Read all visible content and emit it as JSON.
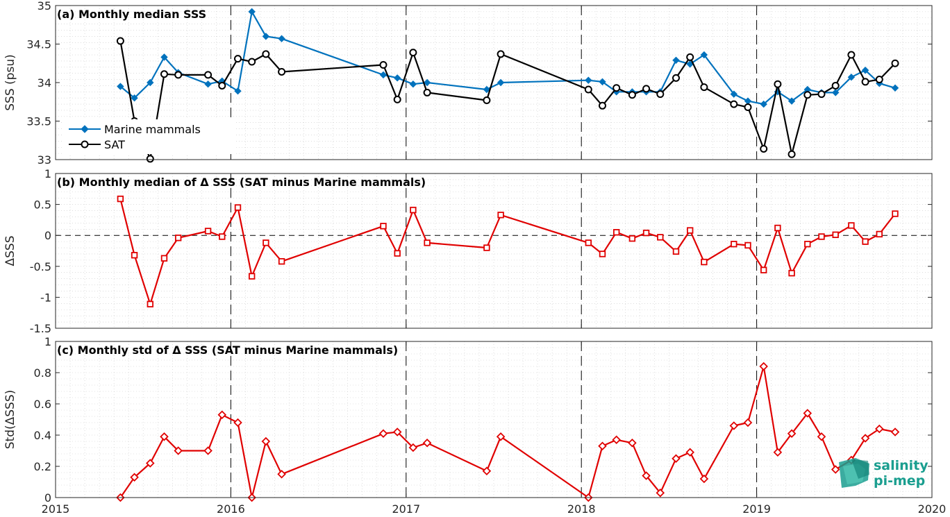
{
  "x_axis": {
    "ticks": [
      "2015",
      "2016",
      "2017",
      "2018",
      "2019",
      "2020"
    ]
  },
  "logo": {
    "line1": "salinity",
    "line2": "pi-mep",
    "color": "#1a9e8f"
  },
  "chart_data": [
    {
      "type": "line",
      "title": "(a) Monthly median SSS",
      "ylabel": "SSS (psu)",
      "xlim": [
        2015,
        2020
      ],
      "ylim": [
        33,
        35
      ],
      "yticks": [
        "33",
        "33.5",
        "34",
        "34.5",
        "35"
      ],
      "grid": true,
      "legend_position": "left",
      "series": [
        {
          "name": "Marine mammals",
          "color": "#0072BD",
          "marker": "diamond-filled",
          "x": [
            2015.37,
            2015.45,
            2015.54,
            2015.62,
            2015.7,
            2015.87,
            2015.95,
            2016.04,
            2016.12,
            2016.2,
            2016.29,
            2016.87,
            2016.95,
            2017.04,
            2017.12,
            2017.46,
            2017.54,
            2018.04,
            2018.12,
            2018.2,
            2018.29,
            2018.37,
            2018.45,
            2018.54,
            2018.62,
            2018.7,
            2018.87,
            2018.95,
            2019.04,
            2019.12,
            2019.2,
            2019.29,
            2019.37,
            2019.45,
            2019.54,
            2019.62,
            2019.7,
            2019.79
          ],
          "y": [
            33.95,
            33.8,
            34.0,
            34.33,
            34.13,
            33.98,
            34.02,
            33.89,
            34.92,
            34.6,
            34.57,
            34.1,
            34.06,
            33.98,
            34.0,
            33.91,
            34.0,
            34.03,
            34.01,
            33.88,
            33.88,
            33.88,
            33.88,
            34.29,
            34.24,
            34.36,
            33.85,
            33.76,
            33.72,
            33.88,
            33.76,
            33.91,
            33.87,
            33.87,
            34.07,
            34.16,
            33.99,
            33.93
          ]
        },
        {
          "name": "SAT",
          "color": "#000000",
          "marker": "circle-open",
          "x": [
            2015.37,
            2015.45,
            2015.54,
            2015.62,
            2015.7,
            2015.87,
            2015.95,
            2016.04,
            2016.12,
            2016.2,
            2016.29,
            2016.87,
            2016.95,
            2017.04,
            2017.12,
            2017.46,
            2017.54,
            2018.04,
            2018.12,
            2018.2,
            2018.29,
            2018.37,
            2018.45,
            2018.54,
            2018.62,
            2018.7,
            2018.87,
            2018.95,
            2019.04,
            2019.12,
            2019.2,
            2019.29,
            2019.37,
            2019.45,
            2019.54,
            2019.62,
            2019.7,
            2019.79
          ],
          "y": [
            34.54,
            33.5,
            33.01,
            34.11,
            34.1,
            34.1,
            33.96,
            34.31,
            34.27,
            34.37,
            34.14,
            34.23,
            33.78,
            34.39,
            33.87,
            33.77,
            34.37,
            33.91,
            33.7,
            33.93,
            33.84,
            33.92,
            33.85,
            34.06,
            34.33,
            33.94,
            33.72,
            33.68,
            33.14,
            33.98,
            33.07,
            33.84,
            33.85,
            33.96,
            34.36,
            34.01,
            34.04,
            34.25
          ]
        }
      ]
    },
    {
      "type": "line",
      "title": "(b) Monthly median of Δ SSS (SAT minus Marine mammals)",
      "ylabel": "ΔSSS",
      "xlim": [
        2015,
        2020
      ],
      "ylim": [
        -1.5,
        1
      ],
      "yticks": [
        "-1.5",
        "-1",
        "-0.5",
        "0",
        "0.5",
        "1"
      ],
      "reference_line": 0,
      "grid": true,
      "series": [
        {
          "color": "#e00000",
          "marker": "square-open",
          "x": [
            2015.37,
            2015.45,
            2015.54,
            2015.62,
            2015.7,
            2015.87,
            2015.95,
            2016.04,
            2016.12,
            2016.2,
            2016.29,
            2016.87,
            2016.95,
            2017.04,
            2017.12,
            2017.46,
            2017.54,
            2018.04,
            2018.12,
            2018.2,
            2018.29,
            2018.37,
            2018.45,
            2018.54,
            2018.62,
            2018.7,
            2018.87,
            2018.95,
            2019.04,
            2019.12,
            2019.2,
            2019.29,
            2019.37,
            2019.45,
            2019.54,
            2019.62,
            2019.7,
            2019.79
          ],
          "y": [
            0.59,
            -0.32,
            -1.11,
            -0.37,
            -0.04,
            0.07,
            -0.02,
            0.45,
            -0.66,
            -0.12,
            -0.42,
            0.15,
            -0.29,
            0.41,
            -0.12,
            -0.2,
            0.33,
            -0.12,
            -0.3,
            0.05,
            -0.05,
            0.04,
            -0.03,
            -0.26,
            0.08,
            -0.43,
            -0.14,
            -0.16,
            -0.56,
            0.12,
            -0.61,
            -0.14,
            -0.02,
            0.01,
            0.16,
            -0.1,
            0.02,
            0.35
          ]
        }
      ]
    },
    {
      "type": "line",
      "title": "(c) Monthly std of Δ SSS (SAT minus Marine mammals)",
      "ylabel": "Std(ΔSSS)",
      "xlim": [
        2015,
        2020
      ],
      "ylim": [
        0,
        1
      ],
      "yticks": [
        "0",
        "0.2",
        "0.4",
        "0.6",
        "0.8",
        "1"
      ],
      "grid": true,
      "series": [
        {
          "color": "#e00000",
          "marker": "diamond-open",
          "x": [
            2015.37,
            2015.45,
            2015.54,
            2015.62,
            2015.7,
            2015.87,
            2015.95,
            2016.04,
            2016.12,
            2016.2,
            2016.29,
            2016.87,
            2016.95,
            2017.04,
            2017.12,
            2017.46,
            2017.54,
            2018.04,
            2018.12,
            2018.2,
            2018.29,
            2018.37,
            2018.45,
            2018.54,
            2018.62,
            2018.7,
            2018.87,
            2018.95,
            2019.04,
            2019.12,
            2019.2,
            2019.29,
            2019.37,
            2019.45,
            2019.54,
            2019.62,
            2019.7,
            2019.79
          ],
          "y": [
            0.0,
            0.13,
            0.22,
            0.39,
            0.3,
            0.3,
            0.53,
            0.48,
            0.0,
            0.36,
            0.15,
            0.41,
            0.42,
            0.32,
            0.35,
            0.17,
            0.39,
            0.0,
            0.33,
            0.37,
            0.35,
            0.14,
            0.03,
            0.25,
            0.29,
            0.12,
            0.46,
            0.48,
            0.84,
            0.29,
            0.41,
            0.54,
            0.39,
            0.18,
            0.24,
            0.38,
            0.44,
            0.42
          ]
        }
      ]
    }
  ]
}
